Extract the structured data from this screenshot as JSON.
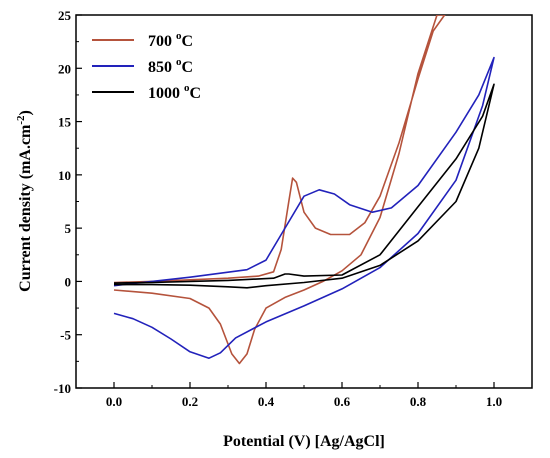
{
  "chart_data": {
    "type": "line",
    "title": "",
    "xlabel": "Potential (V) [Ag/AgCl]",
    "ylabel_parts": {
      "main": "Current density (mA.cm",
      "sup": "-2",
      "end": ")"
    },
    "xlim": [
      -0.1,
      1.1
    ],
    "ylim": [
      -10,
      25
    ],
    "x_ticks": [
      0.0,
      0.2,
      0.4,
      0.6,
      0.8,
      1.0
    ],
    "x_tick_labels": [
      "0.0",
      "0.2",
      "0.4",
      "0.6",
      "0.8",
      "1.0"
    ],
    "y_ticks": [
      -10,
      -5,
      0,
      5,
      10,
      15,
      20,
      25
    ],
    "y_tick_labels": [
      "-10",
      "-5",
      "0",
      "5",
      "10",
      "15",
      "20",
      "25"
    ],
    "legend_position": "top-left",
    "series": [
      {
        "name": "700 °C",
        "label_main": "700 ",
        "label_sup": "o",
        "label_end": "C",
        "color": "#b5533c",
        "points": [
          [
            0.0,
            -0.1
          ],
          [
            0.1,
            0.0
          ],
          [
            0.2,
            0.15
          ],
          [
            0.3,
            0.3
          ],
          [
            0.38,
            0.5
          ],
          [
            0.42,
            0.9
          ],
          [
            0.44,
            3
          ],
          [
            0.46,
            7.5
          ],
          [
            0.47,
            9.7
          ],
          [
            0.48,
            9.3
          ],
          [
            0.5,
            6.5
          ],
          [
            0.53,
            5.0
          ],
          [
            0.57,
            4.4
          ],
          [
            0.62,
            4.4
          ],
          [
            0.66,
            5.5
          ],
          [
            0.7,
            8.0
          ],
          [
            0.75,
            13.0
          ],
          [
            0.8,
            19.0
          ],
          [
            0.84,
            23.5
          ],
          [
            0.87,
            25
          ],
          [
            0.85,
            25
          ],
          [
            0.8,
            19.5
          ],
          [
            0.75,
            12.0
          ],
          [
            0.7,
            6.0
          ],
          [
            0.65,
            2.5
          ],
          [
            0.6,
            1.0
          ],
          [
            0.55,
            0.0
          ],
          [
            0.5,
            -0.8
          ],
          [
            0.45,
            -1.5
          ],
          [
            0.4,
            -2.5
          ],
          [
            0.37,
            -4.5
          ],
          [
            0.35,
            -6.8
          ],
          [
            0.33,
            -7.7
          ],
          [
            0.31,
            -6.8
          ],
          [
            0.28,
            -4.0
          ],
          [
            0.25,
            -2.5
          ],
          [
            0.2,
            -1.6
          ],
          [
            0.1,
            -1.1
          ],
          [
            0.0,
            -0.8
          ]
        ]
      },
      {
        "name": "850 °C",
        "label_main": "850 ",
        "label_sup": "o",
        "label_end": "C",
        "color": "#2222bb",
        "points": [
          [
            0.0,
            -3.0
          ],
          [
            0.05,
            -3.5
          ],
          [
            0.1,
            -4.3
          ],
          [
            0.15,
            -5.4
          ],
          [
            0.2,
            -6.6
          ],
          [
            0.25,
            -7.2
          ],
          [
            0.28,
            -6.7
          ],
          [
            0.32,
            -5.3
          ],
          [
            0.4,
            -3.8
          ],
          [
            0.5,
            -2.3
          ],
          [
            0.6,
            -0.7
          ],
          [
            0.7,
            1.3
          ],
          [
            0.8,
            4.5
          ],
          [
            0.9,
            9.5
          ],
          [
            0.97,
            16.5
          ],
          [
            1.0,
            21.0
          ],
          [
            0.96,
            17.5
          ],
          [
            0.9,
            14.0
          ],
          [
            0.8,
            9.0
          ],
          [
            0.73,
            6.9
          ],
          [
            0.68,
            6.5
          ],
          [
            0.62,
            7.2
          ],
          [
            0.58,
            8.2
          ],
          [
            0.54,
            8.6
          ],
          [
            0.5,
            8.0
          ],
          [
            0.45,
            5.0
          ],
          [
            0.4,
            2.0
          ],
          [
            0.35,
            1.1
          ],
          [
            0.2,
            0.4
          ],
          [
            0.1,
            0.0
          ],
          [
            0.0,
            -0.4
          ]
        ]
      },
      {
        "name": "1000 °C",
        "label_main": "1000 ",
        "label_sup": "o",
        "label_end": "C",
        "color": "#000000",
        "points": [
          [
            0.0,
            -0.3
          ],
          [
            0.1,
            -0.3
          ],
          [
            0.2,
            -0.35
          ],
          [
            0.3,
            -0.5
          ],
          [
            0.35,
            -0.6
          ],
          [
            0.4,
            -0.4
          ],
          [
            0.5,
            -0.1
          ],
          [
            0.6,
            0.3
          ],
          [
            0.7,
            1.5
          ],
          [
            0.8,
            3.8
          ],
          [
            0.9,
            7.5
          ],
          [
            0.96,
            12.5
          ],
          [
            1.0,
            18.5
          ],
          [
            0.97,
            15.5
          ],
          [
            0.9,
            11.5
          ],
          [
            0.8,
            7.0
          ],
          [
            0.7,
            2.5
          ],
          [
            0.6,
            0.6
          ],
          [
            0.5,
            0.5
          ],
          [
            0.46,
            0.7
          ],
          [
            0.45,
            0.7
          ],
          [
            0.42,
            0.3
          ],
          [
            0.3,
            0.1
          ],
          [
            0.2,
            0.0
          ],
          [
            0.1,
            -0.1
          ],
          [
            0.0,
            -0.15
          ]
        ]
      }
    ]
  }
}
